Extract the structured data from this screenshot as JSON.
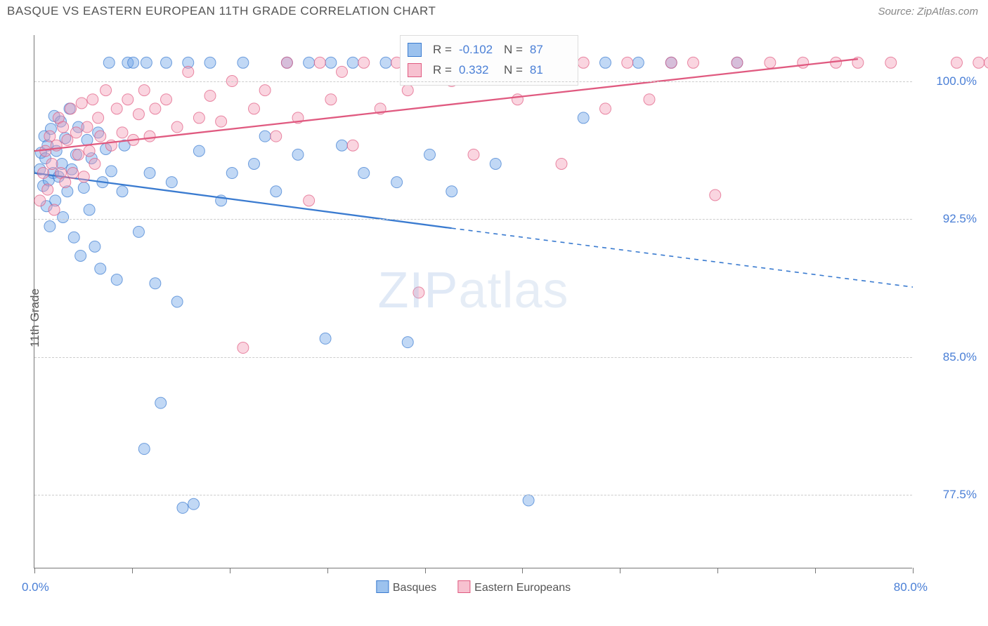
{
  "title": "BASQUE VS EASTERN EUROPEAN 11TH GRADE CORRELATION CHART",
  "source": "Source: ZipAtlas.com",
  "ylabel": "11th Grade",
  "watermark_a": "ZIP",
  "watermark_b": "atlas",
  "chart": {
    "type": "scatter",
    "background_color": "#ffffff",
    "grid_color": "#cccccc",
    "grid_dash": "4,4",
    "axis_color": "#777777",
    "text_color": "#555555",
    "value_color": "#4a7fd6",
    "title_fontsize": 17,
    "label_fontsize": 17,
    "tick_fontsize": 17,
    "xlim": [
      0,
      80
    ],
    "ylim": [
      73.5,
      102.5
    ],
    "yticks": [
      77.5,
      85.0,
      92.5,
      100.0
    ],
    "ytick_labels": [
      "77.5%",
      "85.0%",
      "92.5%",
      "100.0%"
    ],
    "xtick_positions": [
      0,
      8.9,
      17.8,
      26.7,
      35.6,
      44.4,
      53.3,
      62.2,
      71.1,
      80
    ],
    "xaxis_min_label": "0.0%",
    "xaxis_max_label": "80.0%",
    "marker_radius": 8,
    "marker_opacity": 0.42,
    "line_width": 2.3,
    "series": [
      {
        "name": "Basques",
        "fill": "#6ba3e8",
        "stroke": "#3a7bd0",
        "swatch_fill": "#9cc2ee",
        "swatch_border": "#3a7bd0",
        "r_label": "R",
        "r_value": "-0.102",
        "n_label": "N",
        "n_value": "87",
        "trend": {
          "x1": 0,
          "y1": 95.0,
          "x2": 38,
          "y2": 92.0,
          "solid_to_x": 38,
          "dash_to_x": 80,
          "dash_to_y": 88.8
        },
        "points": [
          [
            0.5,
            95.2
          ],
          [
            0.6,
            96.1
          ],
          [
            0.8,
            94.3
          ],
          [
            0.9,
            97.0
          ],
          [
            1.0,
            95.8
          ],
          [
            1.1,
            93.2
          ],
          [
            1.2,
            96.5
          ],
          [
            1.3,
            94.6
          ],
          [
            1.4,
            92.1
          ],
          [
            1.5,
            97.4
          ],
          [
            1.7,
            95.0
          ],
          [
            1.8,
            98.1
          ],
          [
            1.9,
            93.5
          ],
          [
            2.0,
            96.2
          ],
          [
            2.2,
            94.8
          ],
          [
            2.4,
            97.8
          ],
          [
            2.5,
            95.5
          ],
          [
            2.6,
            92.6
          ],
          [
            2.8,
            96.9
          ],
          [
            3.0,
            94.0
          ],
          [
            3.2,
            98.5
          ],
          [
            3.4,
            95.2
          ],
          [
            3.6,
            91.5
          ],
          [
            3.8,
            96.0
          ],
          [
            4.0,
            97.5
          ],
          [
            4.2,
            90.5
          ],
          [
            4.5,
            94.2
          ],
          [
            4.8,
            96.8
          ],
          [
            5.0,
            93.0
          ],
          [
            5.2,
            95.8
          ],
          [
            5.5,
            91.0
          ],
          [
            5.8,
            97.2
          ],
          [
            6.0,
            89.8
          ],
          [
            6.2,
            94.5
          ],
          [
            6.5,
            96.3
          ],
          [
            6.8,
            101.0
          ],
          [
            7.0,
            95.1
          ],
          [
            7.5,
            89.2
          ],
          [
            8.0,
            94.0
          ],
          [
            8.2,
            96.5
          ],
          [
            8.5,
            101.0
          ],
          [
            9.0,
            101.0
          ],
          [
            9.5,
            91.8
          ],
          [
            10.0,
            80.0
          ],
          [
            10.2,
            101.0
          ],
          [
            10.5,
            95.0
          ],
          [
            11.0,
            89.0
          ],
          [
            11.5,
            82.5
          ],
          [
            12.0,
            101.0
          ],
          [
            12.5,
            94.5
          ],
          [
            13.0,
            88.0
          ],
          [
            13.5,
            76.8
          ],
          [
            14.0,
            101.0
          ],
          [
            14.5,
            77.0
          ],
          [
            15.0,
            96.2
          ],
          [
            16.0,
            101.0
          ],
          [
            17.0,
            93.5
          ],
          [
            18.0,
            95.0
          ],
          [
            19.0,
            101.0
          ],
          [
            20.0,
            95.5
          ],
          [
            21.0,
            97.0
          ],
          [
            22.0,
            94.0
          ],
          [
            23.0,
            101.0
          ],
          [
            24.0,
            96.0
          ],
          [
            25.0,
            101.0
          ],
          [
            26.5,
            86.0
          ],
          [
            27.0,
            101.0
          ],
          [
            28.0,
            96.5
          ],
          [
            29.0,
            101.0
          ],
          [
            30.0,
            95.0
          ],
          [
            32.0,
            101.0
          ],
          [
            33.0,
            94.5
          ],
          [
            34.0,
            85.8
          ],
          [
            35.0,
            101.0
          ],
          [
            36.0,
            96.0
          ],
          [
            37.0,
            101.0
          ],
          [
            38.0,
            94.0
          ],
          [
            40.0,
            101.0
          ],
          [
            42.0,
            95.5
          ],
          [
            43.0,
            101.0
          ],
          [
            45.0,
            77.2
          ],
          [
            48.0,
            101.0
          ],
          [
            50.0,
            98.0
          ],
          [
            52.0,
            101.0
          ],
          [
            55.0,
            101.0
          ],
          [
            58.0,
            101.0
          ],
          [
            64.0,
            101.0
          ]
        ]
      },
      {
        "name": "Eastern Europeans",
        "fill": "#f29bb5",
        "stroke": "#e05a80",
        "swatch_fill": "#f7c1d0",
        "swatch_border": "#e05a80",
        "r_label": "R",
        "r_value": "0.332",
        "n_label": "N",
        "n_value": "81",
        "trend": {
          "x1": 0,
          "y1": 96.2,
          "x2": 75,
          "y2": 101.2,
          "solid_to_x": 75
        },
        "points": [
          [
            0.5,
            93.5
          ],
          [
            0.8,
            95.0
          ],
          [
            1.0,
            96.2
          ],
          [
            1.2,
            94.1
          ],
          [
            1.4,
            97.0
          ],
          [
            1.6,
            95.5
          ],
          [
            1.8,
            93.0
          ],
          [
            2.0,
            96.5
          ],
          [
            2.2,
            98.0
          ],
          [
            2.4,
            95.0
          ],
          [
            2.6,
            97.5
          ],
          [
            2.8,
            94.5
          ],
          [
            3.0,
            96.8
          ],
          [
            3.3,
            98.5
          ],
          [
            3.5,
            95.0
          ],
          [
            3.8,
            97.2
          ],
          [
            4.0,
            96.0
          ],
          [
            4.3,
            98.8
          ],
          [
            4.5,
            94.8
          ],
          [
            4.8,
            97.5
          ],
          [
            5.0,
            96.2
          ],
          [
            5.3,
            99.0
          ],
          [
            5.5,
            95.5
          ],
          [
            5.8,
            98.0
          ],
          [
            6.0,
            97.0
          ],
          [
            6.5,
            99.5
          ],
          [
            7.0,
            96.5
          ],
          [
            7.5,
            98.5
          ],
          [
            8.0,
            97.2
          ],
          [
            8.5,
            99.0
          ],
          [
            9.0,
            96.8
          ],
          [
            9.5,
            98.2
          ],
          [
            10.0,
            99.5
          ],
          [
            10.5,
            97.0
          ],
          [
            11.0,
            98.5
          ],
          [
            12.0,
            99.0
          ],
          [
            13.0,
            97.5
          ],
          [
            14.0,
            100.5
          ],
          [
            15.0,
            98.0
          ],
          [
            16.0,
            99.2
          ],
          [
            17.0,
            97.8
          ],
          [
            18.0,
            100.0
          ],
          [
            19.0,
            85.5
          ],
          [
            20.0,
            98.5
          ],
          [
            21.0,
            99.5
          ],
          [
            22.0,
            97.0
          ],
          [
            23.0,
            101.0
          ],
          [
            24.0,
            98.0
          ],
          [
            25.0,
            93.5
          ],
          [
            26.0,
            101.0
          ],
          [
            27.0,
            99.0
          ],
          [
            28.0,
            100.5
          ],
          [
            29.0,
            96.5
          ],
          [
            30.0,
            101.0
          ],
          [
            31.5,
            98.5
          ],
          [
            33.0,
            101.0
          ],
          [
            34.0,
            99.5
          ],
          [
            35.0,
            88.5
          ],
          [
            36.0,
            101.0
          ],
          [
            38.0,
            100.0
          ],
          [
            40.0,
            96.0
          ],
          [
            42.0,
            101.0
          ],
          [
            44.0,
            99.0
          ],
          [
            46.0,
            101.0
          ],
          [
            48.0,
            95.5
          ],
          [
            50.0,
            101.0
          ],
          [
            52.0,
            98.5
          ],
          [
            54.0,
            101.0
          ],
          [
            56.0,
            99.0
          ],
          [
            58.0,
            101.0
          ],
          [
            60.0,
            101.0
          ],
          [
            62.0,
            93.8
          ],
          [
            64.0,
            101.0
          ],
          [
            67.0,
            101.0
          ],
          [
            70.0,
            101.0
          ],
          [
            73.0,
            101.0
          ],
          [
            75.0,
            101.0
          ],
          [
            78.0,
            101.0
          ],
          [
            84.0,
            101.0
          ],
          [
            86.0,
            101.0
          ],
          [
            87.0,
            101.0
          ]
        ]
      }
    ]
  }
}
